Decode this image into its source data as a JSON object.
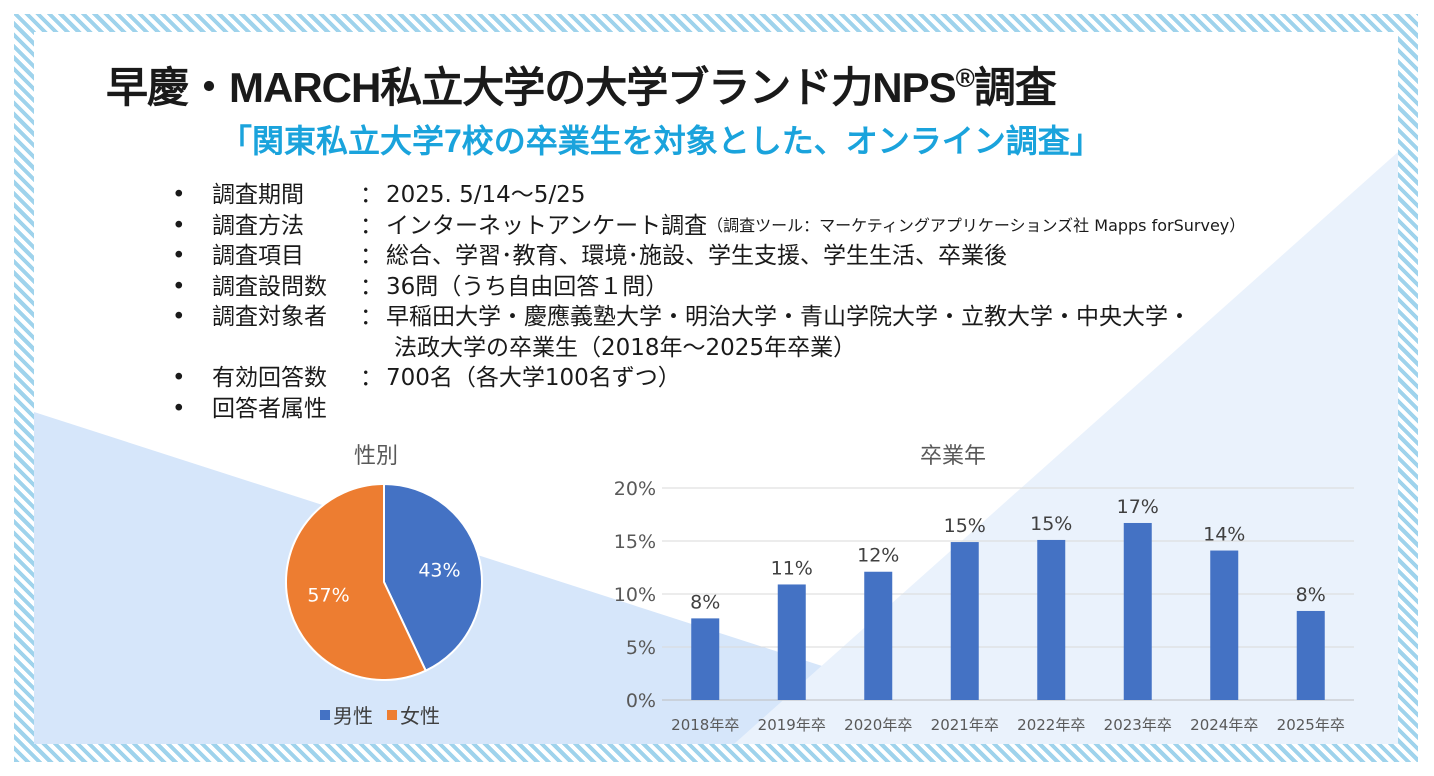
{
  "title": {
    "main": "早慶・MARCH私立大学の大学ブランド力NPS",
    "reg": "®",
    "suffix": "調査"
  },
  "subtitle": "「関東私立大学7校の卒業生を対象とした、オンライン調査」",
  "info": [
    {
      "bullet": "•",
      "label": "調査期間",
      "colon": "：",
      "value": "2025. 5/14～5/25"
    },
    {
      "bullet": "•",
      "label": "調査方法",
      "colon": "：",
      "value": "インターネットアンケート調査",
      "note": "（調査ツール：マーケティングアプリケーションズ社 Mapps forSurvey）"
    },
    {
      "bullet": "•",
      "label": "調査項目",
      "colon": "：",
      "value": "総合、学習･教育、環境･施設、学生支援、学生生活、卒業後"
    },
    {
      "bullet": "•",
      "label": "調査設問数",
      "colon": "：",
      "value": "36問（うち自由回答１問）"
    },
    {
      "bullet": "•",
      "label": "調査対象者",
      "colon": "：",
      "value": "早稲田大学・慶應義塾大学・明治大学・青山学院大学・立教大学・中央大学・",
      "continuation": "法政大学の卒業生（2018年～2025年卒業）"
    },
    {
      "bullet": "•",
      "label": "有効回答数",
      "colon": "：",
      "value": "700名（各大学100名ずつ）"
    },
    {
      "bullet": "•",
      "label": "回答者属性",
      "colon": "",
      "value": ""
    }
  ],
  "colors": {
    "male": "#4472c4",
    "female": "#ed7d31",
    "accent": "#1aa3dc",
    "stripe": "#9fd3ec"
  },
  "chart_data": [
    {
      "type": "pie",
      "title": "性別",
      "categories": [
        "男性",
        "女性"
      ],
      "values": [
        43,
        57
      ],
      "data_labels": [
        "43%",
        "57%"
      ],
      "legend": "bottom"
    },
    {
      "type": "bar",
      "title": "卒業年",
      "categories": [
        "2018年卒",
        "2019年卒",
        "2020年卒",
        "2021年卒",
        "2022年卒",
        "2023年卒",
        "2024年卒",
        "2025年卒"
      ],
      "values": [
        7.7,
        10.9,
        12.1,
        14.9,
        15.1,
        16.7,
        14.1,
        8.4
      ],
      "data_labels": [
        "8%",
        "11%",
        "12%",
        "15%",
        "15%",
        "17%",
        "14%",
        "8%"
      ],
      "ylim": [
        0,
        20
      ],
      "yticks": [
        "0%",
        "5%",
        "10%",
        "15%",
        "20%"
      ],
      "grid": true,
      "xlabel": "",
      "ylabel": ""
    }
  ]
}
